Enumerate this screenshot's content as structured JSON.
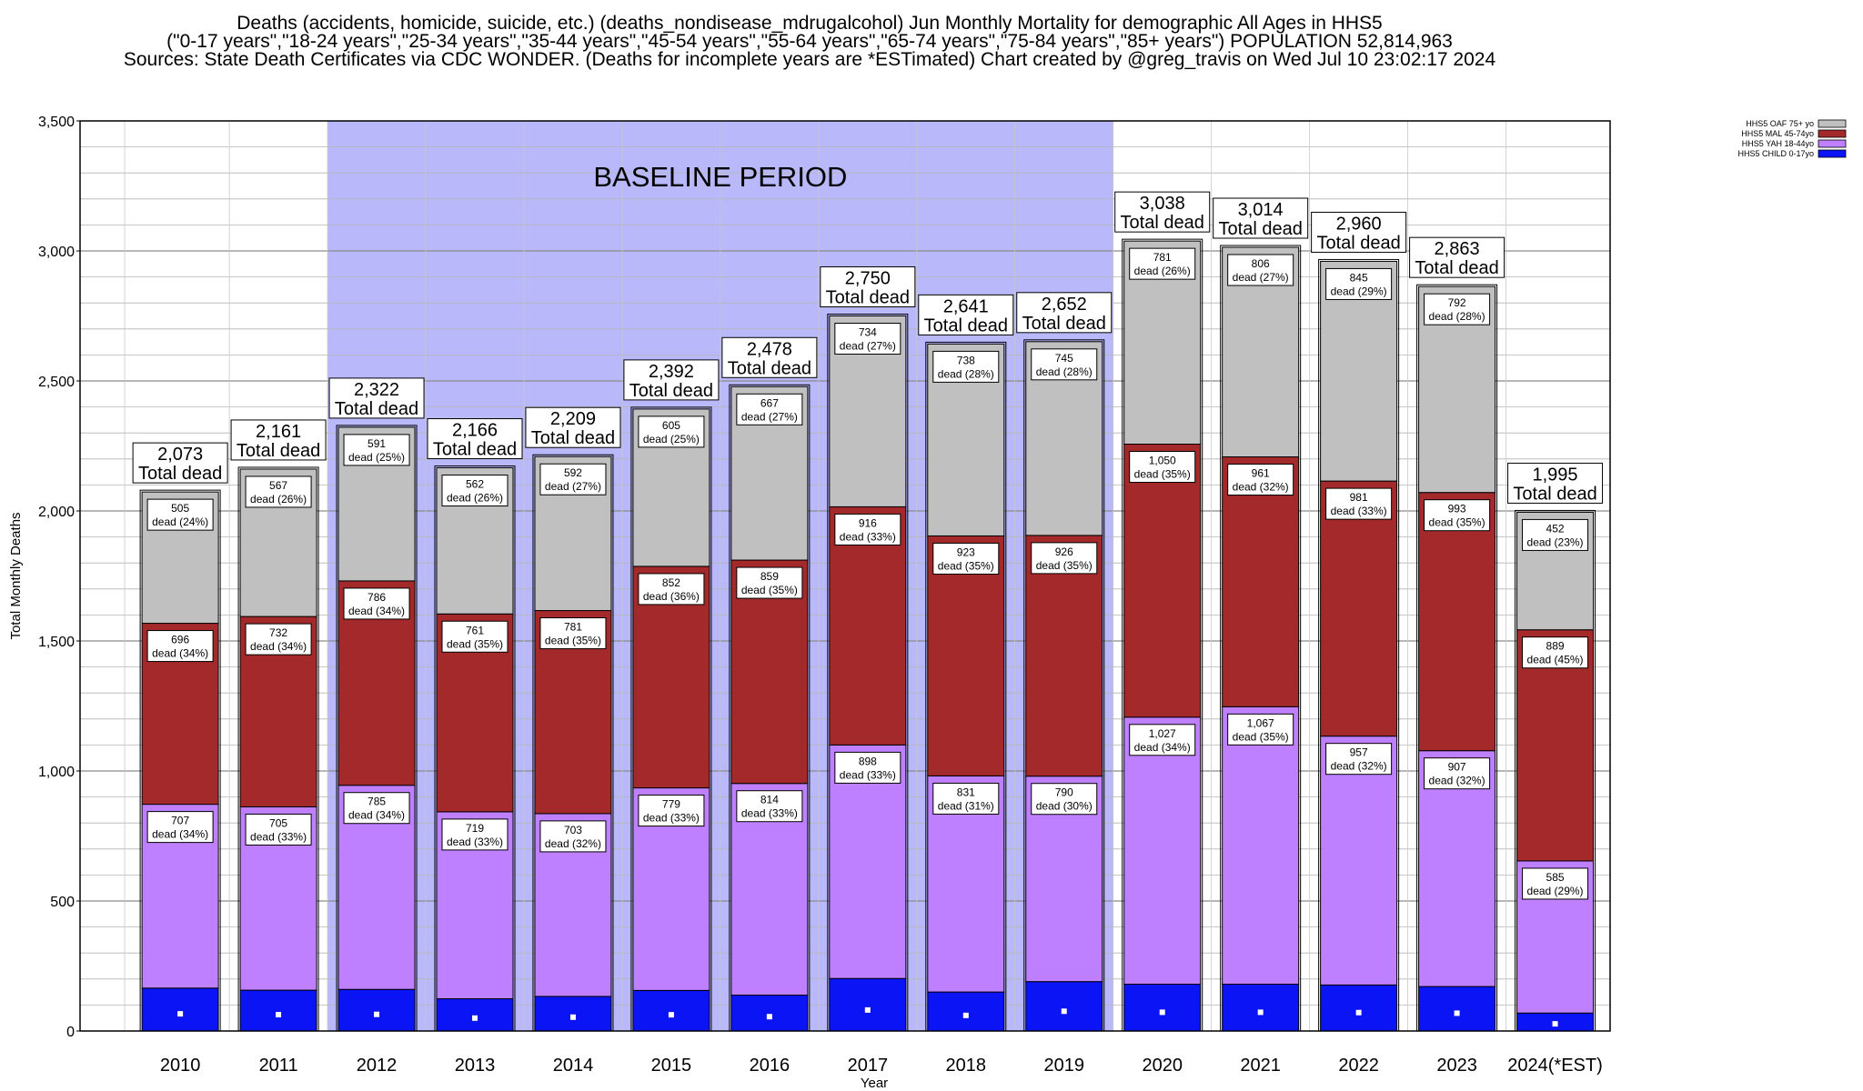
{
  "title_lines": [
    "Deaths (accidents, homicide, suicide, etc.) (deaths_nondisease_mdrugalcohol) Jun Monthly Mortality for demographic All Ages in HHS5",
    "(\"0-17 years\",\"18-24 years\",\"25-34 years\",\"35-44 years\",\"45-54 years\",\"55-64 years\",\"65-74 years\",\"75-84 years\",\"85+ years\") POPULATION 52,814,963",
    "Sources: State Death Certificates via CDC WONDER. (Deaths for incomplete years are *ESTimated)                Chart created by @greg_travis on Wed Jul 10 23:02:17 2024"
  ],
  "colors": {
    "child": "#0a14f5",
    "yah": "#bf80ff",
    "mal": "#a3292b",
    "oaf": "#c0c0c0",
    "baseline": "#b8b8fa"
  },
  "chart_data": {
    "type": "bar",
    "stacked": true,
    "xlabel": "Year",
    "ylabel": "Total Monthly Deaths",
    "ylim": [
      0,
      3500
    ],
    "yticks": [
      0,
      500,
      1000,
      1500,
      2000,
      2500,
      3000,
      3500
    ],
    "ytick_labels": [
      "0",
      "500",
      "1,000",
      "1,500",
      "2,000",
      "2,500",
      "3,000",
      "3,500"
    ],
    "grid": true,
    "legend_position": "top-right",
    "categories": [
      "2010",
      "2011",
      "2012",
      "2013",
      "2014",
      "2015",
      "2016",
      "2017",
      "2018",
      "2019",
      "2020",
      "2021",
      "2022",
      "2023",
      "2024(*EST)"
    ],
    "baseline_period": {
      "label": "BASELINE PERIOD",
      "from": "2012",
      "to": "2019"
    },
    "series": [
      {
        "name": "HHS5 CHILD 0-17yo",
        "key": "child",
        "values": [
          165,
          157,
          160,
          124,
          133,
          156,
          138,
          202,
          150,
          190,
          180,
          180,
          177,
          171,
          69
        ]
      },
      {
        "name": "HHS5 YAH 18-44yo",
        "key": "yah",
        "values": [
          707,
          705,
          785,
          719,
          703,
          779,
          814,
          898,
          831,
          790,
          1027,
          1067,
          957,
          907,
          585
        ],
        "labels": [
          "707\ndead (34%)",
          "705\ndead (33%)",
          "785\ndead (34%)",
          "719\ndead (33%)",
          "703\ndead (32%)",
          "779\ndead (33%)",
          "814\ndead (33%)",
          "898\ndead (33%)",
          "831\ndead (31%)",
          "790\ndead (30%)",
          "1,027\ndead (34%)",
          "1,067\ndead (35%)",
          "957\ndead (32%)",
          "907\ndead (32%)",
          "585\ndead (29%)"
        ]
      },
      {
        "name": "HHS5 MAL 45-74yo",
        "key": "mal",
        "values": [
          696,
          732,
          786,
          761,
          781,
          852,
          859,
          916,
          923,
          926,
          1050,
          961,
          981,
          993,
          889
        ],
        "labels": [
          "696\ndead (34%)",
          "732\ndead (34%)",
          "786\ndead (34%)",
          "761\ndead (35%)",
          "781\ndead (35%)",
          "852\ndead (36%)",
          "859\ndead (35%)",
          "916\ndead (33%)",
          "923\ndead (35%)",
          "926\ndead (35%)",
          "1,050\ndead (35%)",
          "961\ndead (32%)",
          "981\ndead (33%)",
          "993\ndead (35%)",
          "889\ndead (45%)"
        ]
      },
      {
        "name": "HHS5 OAF 75+ yo",
        "key": "oaf",
        "values": [
          505,
          567,
          591,
          562,
          592,
          605,
          667,
          734,
          738,
          745,
          781,
          806,
          845,
          792,
          452
        ],
        "labels": [
          "505\ndead (24%)",
          "567\ndead (26%)",
          "591\ndead (25%)",
          "562\ndead (26%)",
          "592\ndead (27%)",
          "605\ndead (25%)",
          "667\ndead (27%)",
          "734\ndead (27%)",
          "738\ndead (28%)",
          "745\ndead (28%)",
          "781\ndead (26%)",
          "806\ndead (27%)",
          "845\ndead (29%)",
          "792\ndead (28%)",
          "452\ndead (23%)"
        ]
      }
    ],
    "legend_order": [
      "oaf",
      "mal",
      "yah",
      "child"
    ],
    "totals": [
      2073,
      2161,
      2322,
      2166,
      2209,
      2392,
      2478,
      2750,
      2641,
      2652,
      3038,
      3014,
      2960,
      2863,
      1995
    ],
    "total_labels": [
      "2,073\nTotal dead",
      "2,161\nTotal dead",
      "2,322\nTotal dead",
      "2,166\nTotal dead",
      "2,209\nTotal dead",
      "2,392\nTotal dead",
      "2,478\nTotal dead",
      "2,750\nTotal dead",
      "2,641\nTotal dead",
      "2,652\nTotal dead",
      "3,038\nTotal dead",
      "3,014\nTotal dead",
      "2,960\nTotal dead",
      "2,863\nTotal dead",
      "1,995\nTotal dead"
    ]
  }
}
